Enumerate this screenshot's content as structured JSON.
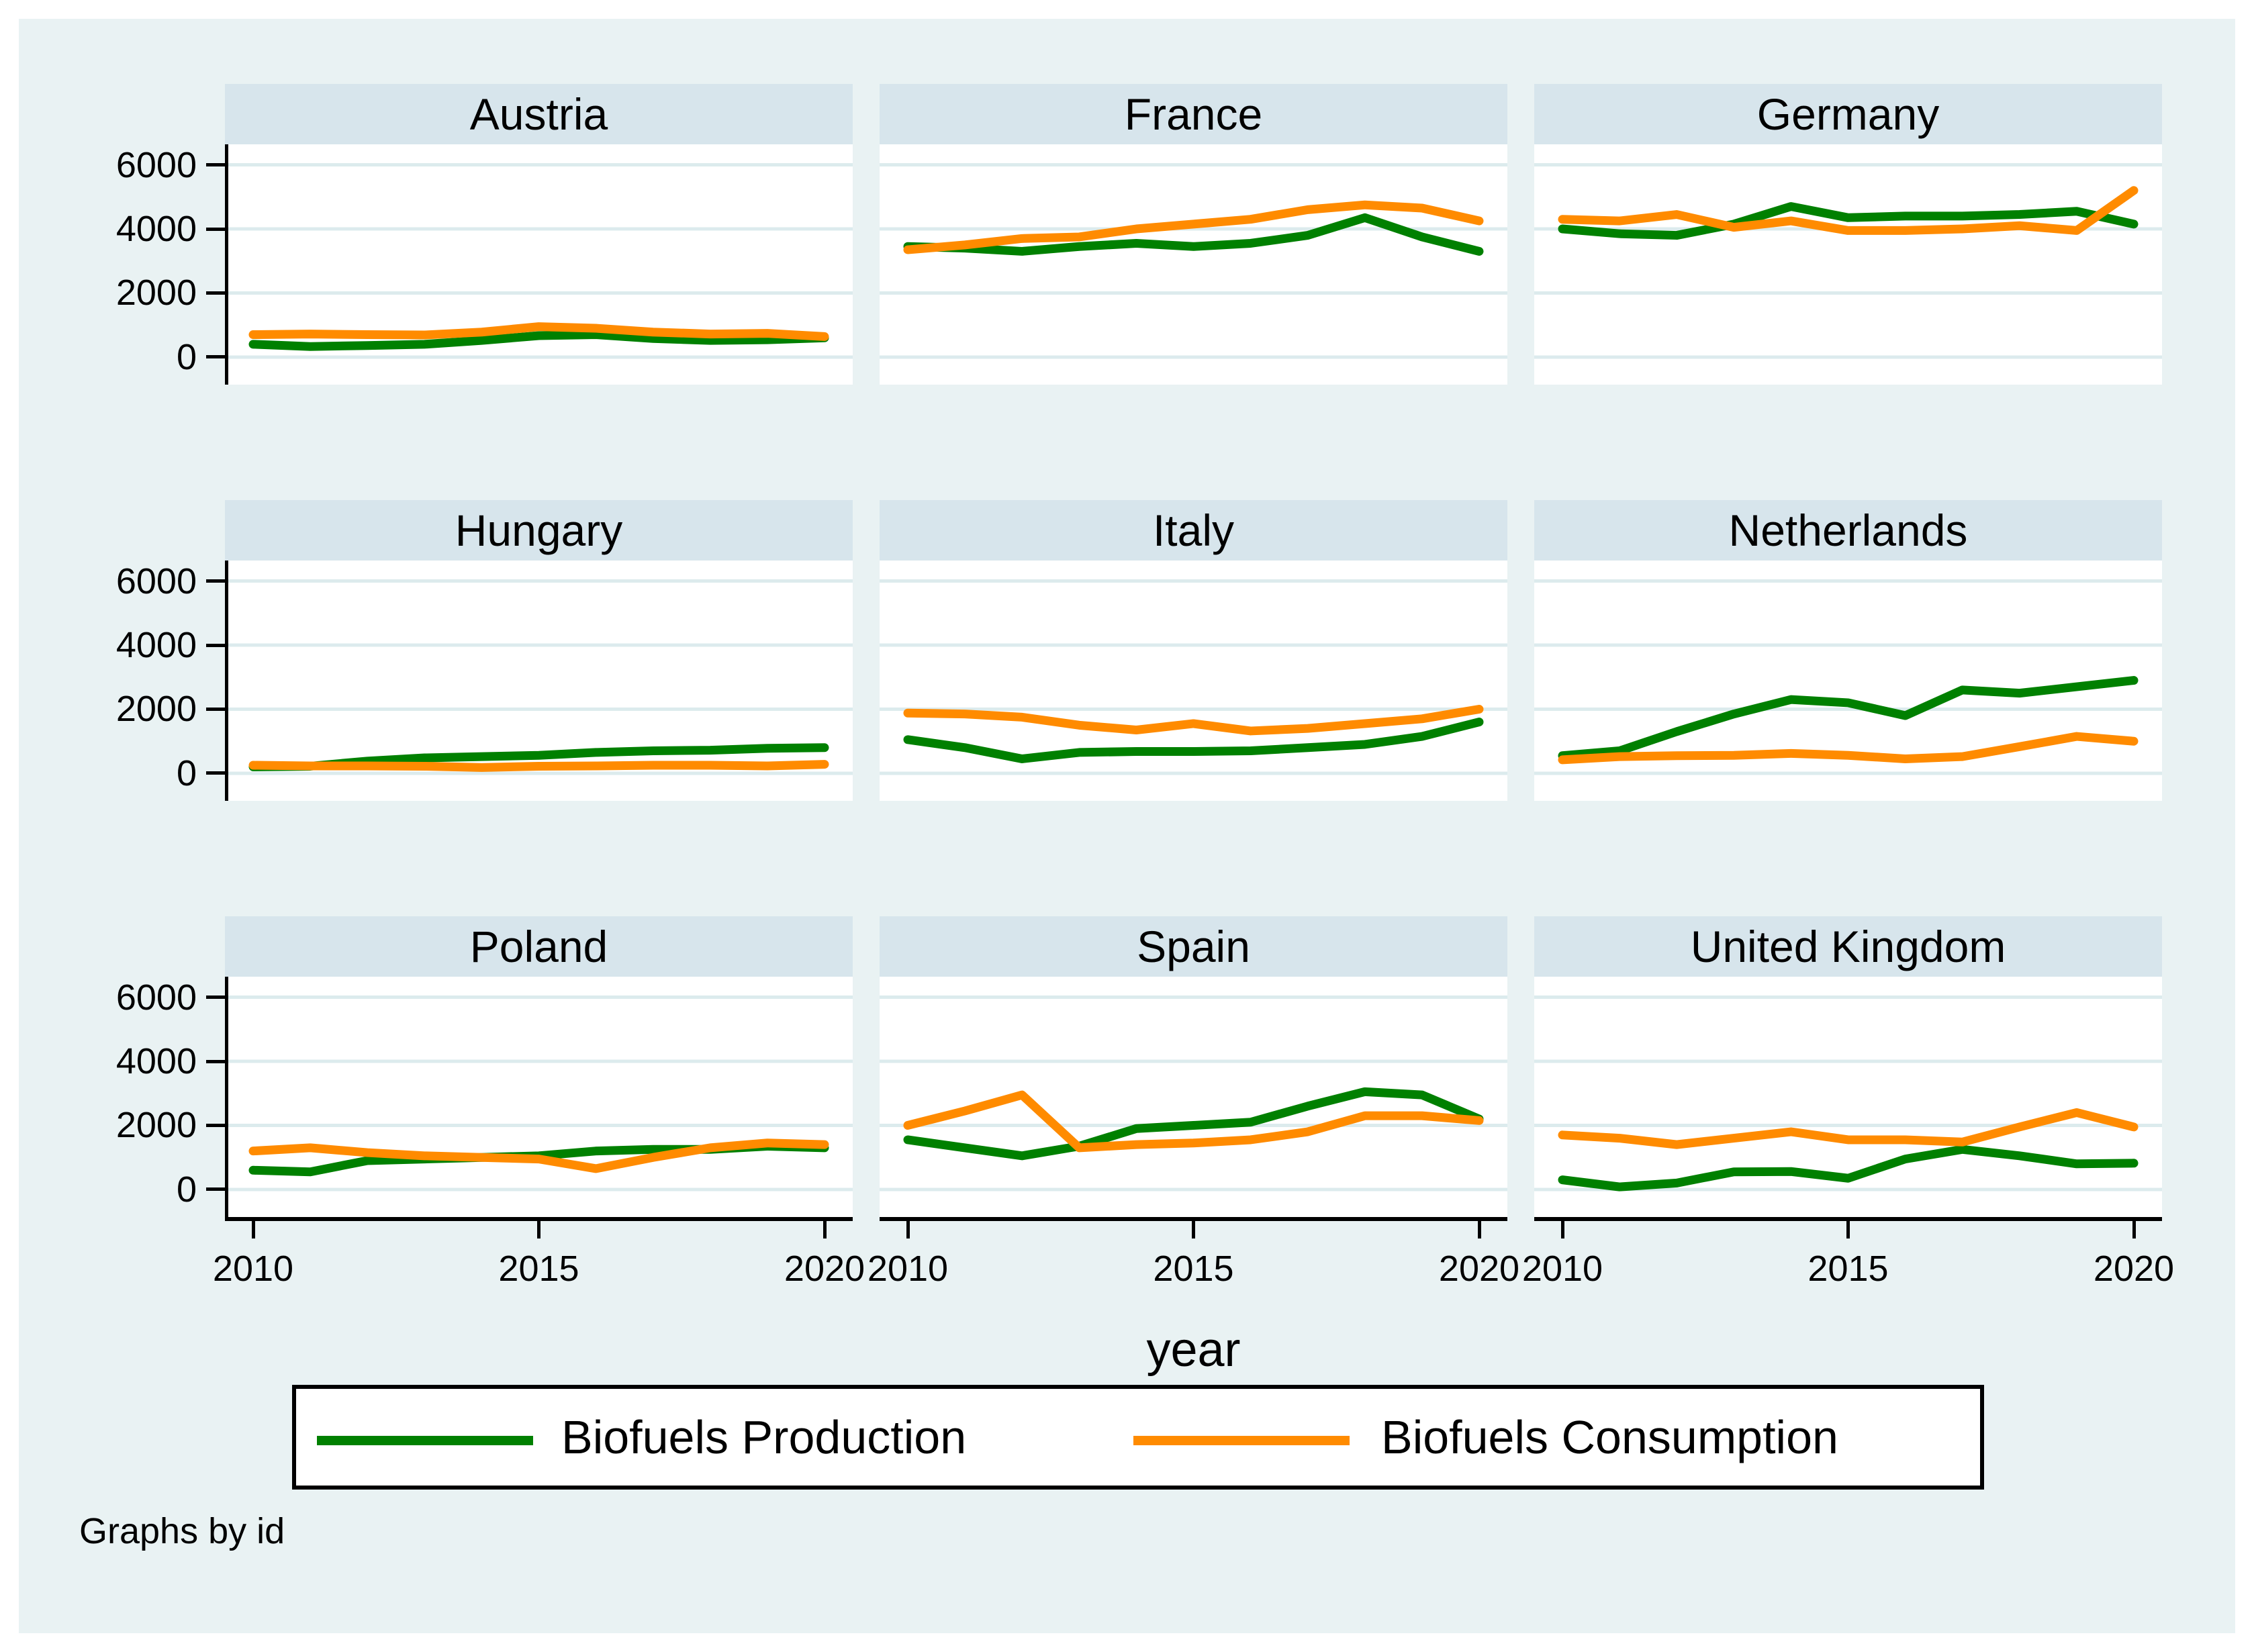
{
  "chart_data": {
    "type": "line",
    "x": [
      2010,
      2011,
      2012,
      2013,
      2014,
      2015,
      2016,
      2017,
      2018,
      2019,
      2020
    ],
    "xlabel": "year",
    "xticks": [
      2010,
      2015,
      2020
    ],
    "yticks": [
      0,
      2000,
      4000,
      6000
    ],
    "ylim": [
      0,
      6000
    ],
    "grid": true,
    "legend_position": "bottom",
    "note": "Graphs by id",
    "legend": [
      {
        "label": "Biofuels Production",
        "color": "#008000"
      },
      {
        "label": "Biofuels Consumption",
        "color": "#ff8b00"
      }
    ],
    "panels": [
      {
        "title": "Austria",
        "series": [
          {
            "name": "Biofuels Production",
            "values": [
              400,
              330,
              360,
              400,
              520,
              670,
              700,
              580,
              520,
              540,
              600
            ]
          },
          {
            "name": "Biofuels Consumption",
            "values": [
              700,
              720,
              700,
              690,
              780,
              950,
              900,
              780,
              720,
              740,
              640
            ]
          }
        ]
      },
      {
        "title": "France",
        "series": [
          {
            "name": "Biofuels Production",
            "values": [
              3450,
              3400,
              3300,
              3450,
              3550,
              3450,
              3550,
              3800,
              4350,
              3750,
              3300
            ]
          },
          {
            "name": "Biofuels Consumption",
            "values": [
              3350,
              3500,
              3700,
              3750,
              4000,
              4150,
              4300,
              4600,
              4750,
              4650,
              4250
            ]
          }
        ]
      },
      {
        "title": "Germany",
        "series": [
          {
            "name": "Biofuels Production",
            "values": [
              4000,
              3850,
              3800,
              4150,
              4700,
              4350,
              4400,
              4400,
              4450,
              4550,
              4150
            ]
          },
          {
            "name": "Biofuels Consumption",
            "values": [
              4300,
              4250,
              4450,
              4050,
              4250,
              3950,
              3950,
              4000,
              4100,
              3950,
              5200
            ]
          }
        ]
      },
      {
        "title": "Hungary",
        "series": [
          {
            "name": "Biofuels Production",
            "values": [
              200,
              220,
              380,
              480,
              520,
              560,
              650,
              700,
              720,
              780,
              800
            ]
          },
          {
            "name": "Biofuels Consumption",
            "values": [
              250,
              230,
              230,
              220,
              180,
              220,
              230,
              250,
              250,
              230,
              280
            ]
          }
        ]
      },
      {
        "title": "Italy",
        "series": [
          {
            "name": "Biofuels Production",
            "values": [
              1050,
              800,
              450,
              650,
              680,
              680,
              700,
              800,
              900,
              1150,
              1600
            ]
          },
          {
            "name": "Biofuels Consumption",
            "values": [
              1880,
              1850,
              1750,
              1500,
              1350,
              1550,
              1320,
              1400,
              1550,
              1700,
              2000
            ]
          }
        ]
      },
      {
        "title": "Netherlands",
        "series": [
          {
            "name": "Biofuels Production",
            "values": [
              550,
              700,
              1300,
              1850,
              2300,
              2200,
              1800,
              2600,
              2500,
              2700,
              2900
            ]
          },
          {
            "name": "Biofuels Consumption",
            "values": [
              420,
              520,
              550,
              560,
              620,
              560,
              450,
              520,
              830,
              1150,
              1000
            ]
          }
        ]
      },
      {
        "title": "Poland",
        "series": [
          {
            "name": "Biofuels Production",
            "values": [
              600,
              550,
              900,
              950,
              1000,
              1050,
              1200,
              1250,
              1250,
              1350,
              1300
            ]
          },
          {
            "name": "Biofuels Consumption",
            "values": [
              1200,
              1300,
              1150,
              1050,
              1000,
              950,
              650,
              1000,
              1300,
              1450,
              1400
            ]
          }
        ]
      },
      {
        "title": "Spain",
        "series": [
          {
            "name": "Biofuels Production",
            "values": [
              1550,
              1300,
              1050,
              1350,
              1900,
              2000,
              2100,
              2600,
              3050,
              2950,
              2200
            ]
          },
          {
            "name": "Biofuels Consumption",
            "values": [
              2000,
              2450,
              2950,
              1300,
              1400,
              1450,
              1550,
              1800,
              2300,
              2300,
              2150
            ]
          }
        ]
      },
      {
        "title": "United Kingdom",
        "series": [
          {
            "name": "Biofuels Production",
            "values": [
              300,
              80,
              200,
              550,
              560,
              350,
              950,
              1250,
              1050,
              800,
              820
            ]
          },
          {
            "name": "Biofuels Consumption",
            "values": [
              1700,
              1600,
              1400,
              1600,
              1800,
              1550,
              1550,
              1480,
              1950,
              2400,
              1950
            ]
          }
        ]
      }
    ],
    "colors": {
      "canvas_background": "#e9f2f3",
      "panel_title_background": "#d7e5ec",
      "plot_background": "#ffffff",
      "gridline": "#dcebed",
      "axis": "#000000"
    }
  }
}
